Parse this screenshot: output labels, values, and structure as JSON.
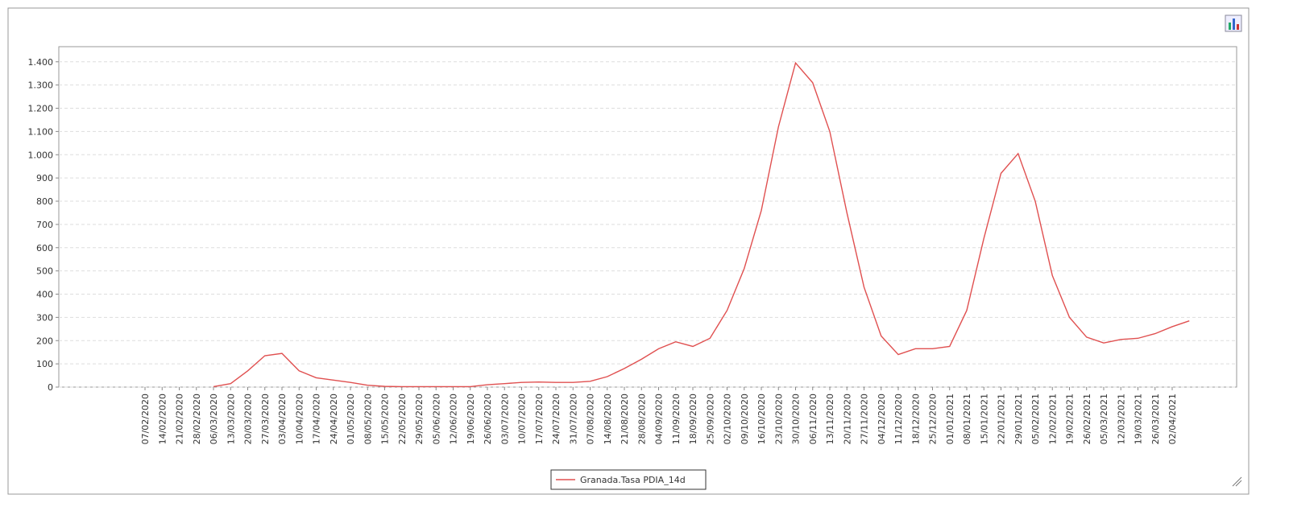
{
  "chart_data": {
    "type": "line",
    "categories": [
      "07/02/2020",
      "14/02/2020",
      "21/02/2020",
      "28/02/2020",
      "06/03/2020",
      "13/03/2020",
      "20/03/2020",
      "27/03/2020",
      "03/04/2020",
      "10/04/2020",
      "17/04/2020",
      "24/04/2020",
      "01/05/2020",
      "08/05/2020",
      "15/05/2020",
      "22/05/2020",
      "29/05/2020",
      "05/06/2020",
      "12/06/2020",
      "19/06/2020",
      "26/06/2020",
      "03/07/2020",
      "10/07/2020",
      "17/07/2020",
      "24/07/2020",
      "31/07/2020",
      "07/08/2020",
      "14/08/2020",
      "21/08/2020",
      "28/08/2020",
      "04/09/2020",
      "11/09/2020",
      "18/09/2020",
      "25/09/2020",
      "02/10/2020",
      "09/10/2020",
      "16/10/2020",
      "23/10/2020",
      "30/10/2020",
      "06/11/2020",
      "13/11/2020",
      "20/11/2020",
      "27/11/2020",
      "04/12/2020",
      "11/12/2020",
      "18/12/2020",
      "25/12/2020",
      "01/01/2021",
      "08/01/2021",
      "15/01/2021",
      "22/01/2021",
      "29/01/2021",
      "05/02/2021",
      "12/02/2021",
      "19/02/2021",
      "26/02/2021",
      "05/03/2021",
      "12/03/2021",
      "19/03/2021",
      "26/03/2021",
      "02/04/2021",
      null
    ],
    "series": [
      {
        "name": "Granada.Tasa PDIA_14d",
        "color": "#e05050",
        "values": [
          null,
          null,
          null,
          null,
          2,
          15,
          70,
          135,
          145,
          70,
          40,
          30,
          20,
          8,
          3,
          2,
          2,
          2,
          2,
          2,
          10,
          15,
          20,
          22,
          20,
          20,
          25,
          45,
          80,
          120,
          165,
          195,
          175,
          210,
          330,
          510,
          760,
          1120,
          1395,
          1310,
          1100,
          750,
          430,
          220,
          140,
          165,
          165,
          175,
          330,
          640,
          920,
          1005,
          800,
          480,
          300,
          215,
          190,
          205,
          210,
          230,
          260,
          285
        ]
      }
    ],
    "ylim": [
      0,
      1465
    ],
    "yticks": [
      0,
      100,
      200,
      300,
      400,
      500,
      600,
      700,
      800,
      900,
      {
        "value": 1000,
        "label": "1.000"
      },
      {
        "value": 1100,
        "label": "1.100"
      },
      {
        "value": 1200,
        "label": "1.200"
      },
      {
        "value": 1300,
        "label": "1.300"
      },
      {
        "value": 1400,
        "label": "1.400"
      }
    ],
    "grid": true
  }
}
